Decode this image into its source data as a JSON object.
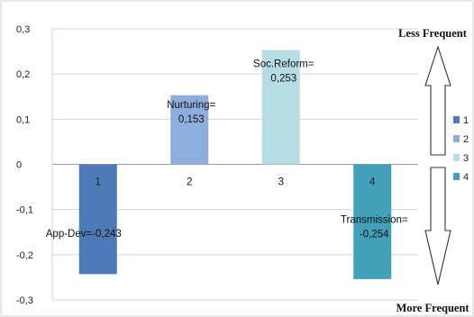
{
  "chart_data": {
    "type": "bar",
    "title": "",
    "xlabel": "",
    "ylabel": "",
    "categories": [
      "1",
      "2",
      "3",
      "4"
    ],
    "values": [
      -0.243,
      0.153,
      0.253,
      -0.254
    ],
    "bar_colors": [
      "#4f7ab8",
      "#8faee0",
      "#b6dde4",
      "#41a1b9"
    ],
    "data_labels": [
      [
        "App-Dev=-0,243"
      ],
      [
        "Nurturing=",
        "0,153"
      ],
      [
        "Soc.Reform=",
        "0,253"
      ],
      [
        "Transmission=",
        "-0,254"
      ]
    ],
    "y_ticks": [
      "0,3",
      "0,2",
      "0,1",
      "0",
      "-0,1",
      "-0,2",
      "-0,3"
    ],
    "ylim": [
      -0.3,
      0.3
    ],
    "grid": true,
    "legend": {
      "placement": "right",
      "entries": [
        "1",
        "2",
        "3",
        "4"
      ]
    },
    "annotations": {
      "top": "Less Frequent",
      "bottom": "More Frequent"
    }
  }
}
